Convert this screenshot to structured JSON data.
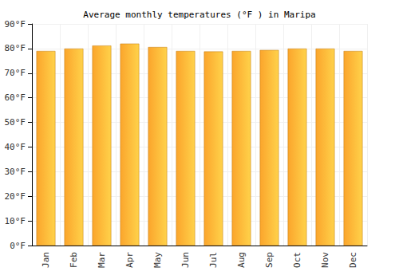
{
  "chart_data": {
    "type": "bar",
    "title": "Average monthly temperatures (°F ) in Maripa",
    "categories": [
      "Jan",
      "Feb",
      "Mar",
      "Apr",
      "May",
      "Jun",
      "Jul",
      "Aug",
      "Sep",
      "Oct",
      "Nov",
      "Dec"
    ],
    "values": [
      79,
      80,
      81.2,
      82,
      80.6,
      79,
      78.8,
      79,
      79.4,
      80,
      80,
      79
    ],
    "color": "#fba52c",
    "ylim": [
      0,
      90
    ],
    "yticks": [
      {
        "value": 0,
        "label": "0°F"
      },
      {
        "value": 10,
        "label": "10°F"
      },
      {
        "value": 20,
        "label": "20°F"
      },
      {
        "value": 30,
        "label": "30°F"
      },
      {
        "value": 40,
        "label": "40°F"
      },
      {
        "value": 50,
        "label": "50°F"
      },
      {
        "value": 60,
        "label": "60°F"
      },
      {
        "value": 70,
        "label": "70°F"
      },
      {
        "value": 80,
        "label": "80°F"
      },
      {
        "value": 90,
        "label": "90°F"
      }
    ],
    "grid": true
  }
}
